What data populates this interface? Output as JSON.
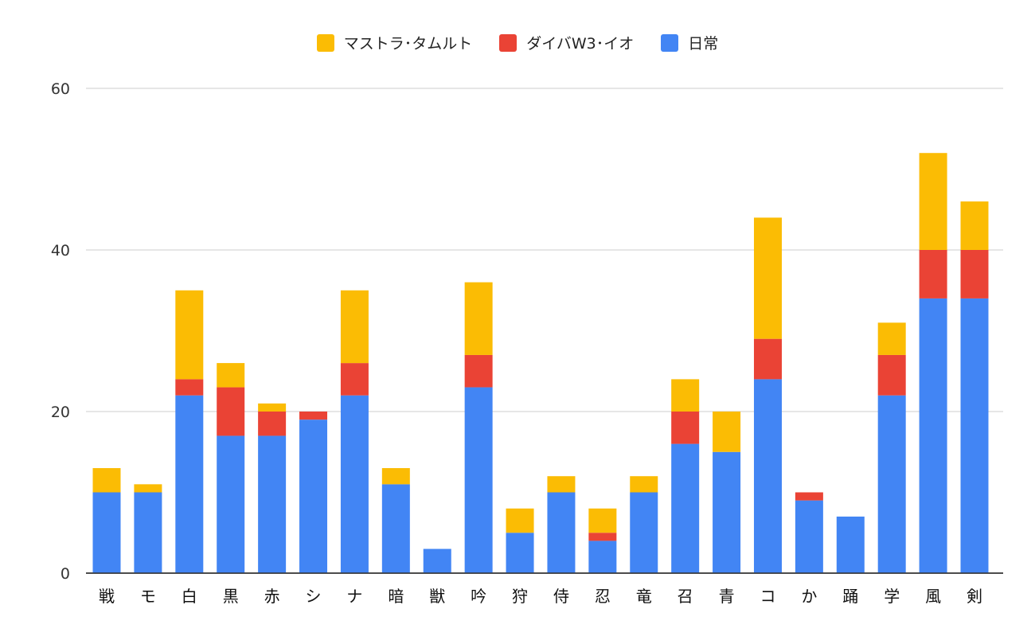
{
  "chart_data": {
    "type": "bar",
    "stacked": true,
    "title": "",
    "xlabel": "",
    "ylabel": "",
    "ylim": [
      0,
      60
    ],
    "yticks": [
      0,
      20,
      40,
      60
    ],
    "grid": true,
    "legend_position": "top-center",
    "categories": [
      "戦",
      "モ",
      "白",
      "黒",
      "赤",
      "シ",
      "ナ",
      "暗",
      "獣",
      "吟",
      "狩",
      "侍",
      "忍",
      "竜",
      "召",
      "青",
      "コ",
      "か",
      "踊",
      "学",
      "風",
      "剣"
    ],
    "series": [
      {
        "name": "日常",
        "color": "#4285f4",
        "values": [
          10,
          10,
          22,
          17,
          17,
          19,
          22,
          11,
          3,
          23,
          5,
          10,
          4,
          10,
          16,
          15,
          24,
          9,
          7,
          22,
          34,
          34
        ]
      },
      {
        "name": "ダイバW3･イオ",
        "color": "#ea4335",
        "values": [
          0,
          0,
          2,
          6,
          3,
          1,
          4,
          0,
          0,
          4,
          0,
          0,
          1,
          0,
          4,
          0,
          5,
          1,
          0,
          5,
          6,
          6
        ]
      },
      {
        "name": "マストラ･タムルト",
        "color": "#fbbc04",
        "values": [
          3,
          1,
          11,
          3,
          1,
          0,
          9,
          2,
          0,
          9,
          3,
          2,
          3,
          2,
          4,
          5,
          15,
          0,
          0,
          4,
          12,
          6
        ]
      }
    ],
    "legend_order": [
      2,
      1,
      0
    ]
  }
}
